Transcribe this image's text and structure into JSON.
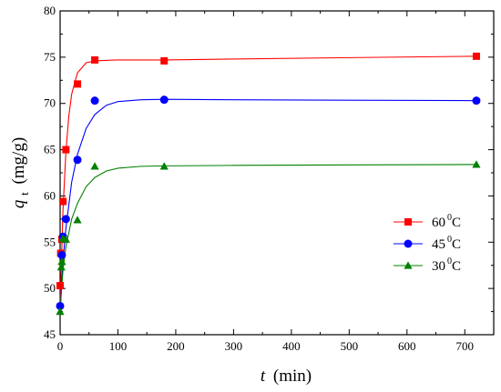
{
  "chart_data": {
    "type": "scatter",
    "title": "",
    "xlabel": {
      "var": "t",
      "unit": "(min)"
    },
    "ylabel": {
      "var": "q",
      "sub": "t",
      "unit": "(mg/g)"
    },
    "xlim": [
      0,
      750
    ],
    "ylim": [
      45,
      80
    ],
    "x_ticks": [
      0,
      100,
      200,
      300,
      400,
      500,
      600,
      700
    ],
    "y_ticks": [
      45,
      50,
      55,
      60,
      65,
      70,
      75,
      80
    ],
    "grid": false,
    "legend_position": "right",
    "series": [
      {
        "name": "60",
        "superscript": "0",
        "unit": "C",
        "color": "#ff0000",
        "marker": "square",
        "x": [
          0,
          1,
          3,
          5,
          10,
          30,
          60,
          180,
          720
        ],
        "y": [
          50.3,
          53.8,
          55.3,
          59.4,
          65.0,
          72.1,
          74.7,
          74.6,
          75.1
        ],
        "fit": [
          [
            0,
            47.5
          ],
          [
            2,
            52.4
          ],
          [
            5,
            58.5
          ],
          [
            10,
            64.8
          ],
          [
            15,
            68.6
          ],
          [
            20,
            71.0
          ],
          [
            30,
            73.3
          ],
          [
            45,
            74.4
          ],
          [
            60,
            74.6
          ],
          [
            100,
            74.7
          ],
          [
            180,
            74.7
          ],
          [
            300,
            74.8
          ],
          [
            500,
            74.95
          ],
          [
            720,
            75.1
          ]
        ]
      },
      {
        "name": "45",
        "superscript": "0",
        "unit": "C",
        "color": "#0000ff",
        "marker": "circle",
        "x": [
          0,
          3,
          5,
          10,
          30,
          60,
          180,
          720
        ],
        "y": [
          48.1,
          53.6,
          55.6,
          57.5,
          63.9,
          70.3,
          70.4,
          70.3
        ],
        "fit": [
          [
            0,
            47.5
          ],
          [
            3,
            51.0
          ],
          [
            5,
            53.0
          ],
          [
            10,
            56.5
          ],
          [
            15,
            59.0
          ],
          [
            20,
            61.5
          ],
          [
            30,
            64.5
          ],
          [
            45,
            67.3
          ],
          [
            60,
            68.8
          ],
          [
            80,
            69.8
          ],
          [
            100,
            70.2
          ],
          [
            140,
            70.4
          ],
          [
            180,
            70.45
          ],
          [
            300,
            70.4
          ],
          [
            500,
            70.35
          ],
          [
            720,
            70.3
          ]
        ]
      },
      {
        "name": "30",
        "superscript": "0",
        "unit": "C",
        "color": "#008000",
        "marker": "triangle",
        "x": [
          0,
          2,
          3,
          5,
          10,
          30,
          60,
          180,
          720
        ],
        "y": [
          47.5,
          52.3,
          52.9,
          55.4,
          55.3,
          57.4,
          63.2,
          63.2,
          63.4
        ],
        "fit": [
          [
            0,
            47.5
          ],
          [
            3,
            50.3
          ],
          [
            5,
            52.0
          ],
          [
            10,
            54.5
          ],
          [
            15,
            56.0
          ],
          [
            20,
            57.5
          ],
          [
            30,
            59.2
          ],
          [
            45,
            61.0
          ],
          [
            60,
            62.0
          ],
          [
            80,
            62.7
          ],
          [
            100,
            63.0
          ],
          [
            140,
            63.2
          ],
          [
            180,
            63.25
          ],
          [
            300,
            63.3
          ],
          [
            500,
            63.35
          ],
          [
            720,
            63.4
          ]
        ]
      }
    ]
  }
}
